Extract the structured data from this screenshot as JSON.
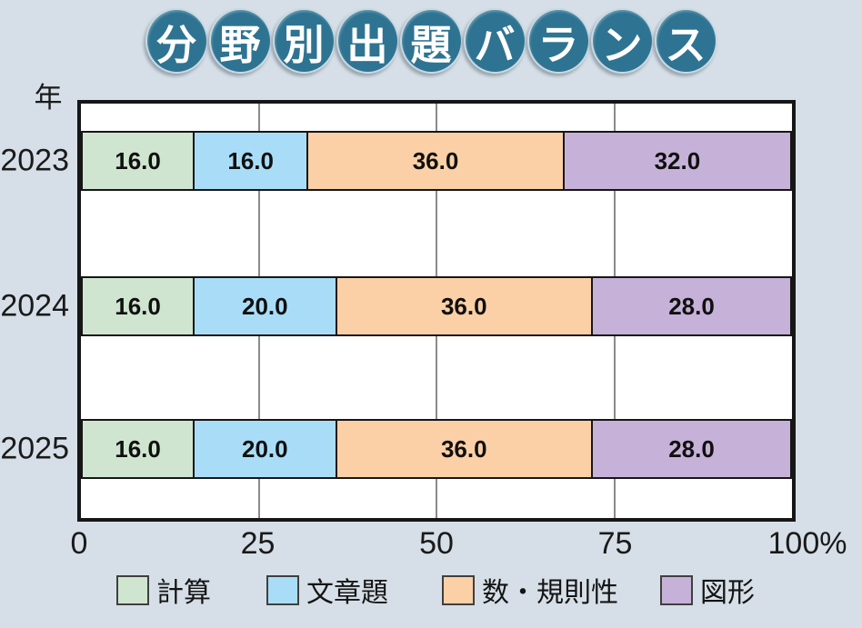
{
  "title": {
    "text": "分野別出題バランス",
    "circle_color": "#2e7492",
    "text_color": "#ffffff"
  },
  "chart_data": {
    "type": "bar",
    "stacked": true,
    "orientation": "horizontal",
    "title": "分野別出題バランス",
    "y_axis_label": "年",
    "categories": [
      "2023",
      "2024",
      "2025"
    ],
    "series": [
      {
        "name": "計算",
        "color": "#cfe5cf",
        "values": [
          16.0,
          16.0,
          16.0
        ]
      },
      {
        "name": "文章題",
        "color": "#a9ddf7",
        "values": [
          16.0,
          20.0,
          20.0
        ]
      },
      {
        "name": "数・規則性",
        "color": "#fbd0a6",
        "values": [
          36.0,
          36.0,
          36.0
        ]
      },
      {
        "name": "図形",
        "color": "#c6b1d8",
        "values": [
          32.0,
          28.0,
          28.0
        ]
      }
    ],
    "x_ticks": [
      {
        "label": "0",
        "value": 0
      },
      {
        "label": "25",
        "value": 25
      },
      {
        "label": "50",
        "value": 50
      },
      {
        "label": "75",
        "value": 75
      },
      {
        "label": "100%",
        "value": 100
      }
    ],
    "xlim": [
      0,
      100
    ],
    "gridlines_at": [
      25,
      50,
      75
    ],
    "value_format": "one_decimal",
    "legend_position": "bottom",
    "grid": true
  },
  "colors": {
    "background": "#d6dfe7",
    "plot_background": "#ffffff",
    "plot_border": "#161616",
    "gridline": "#8b8b8b",
    "bar_border": "#161616",
    "text": "#1a1a1a"
  }
}
